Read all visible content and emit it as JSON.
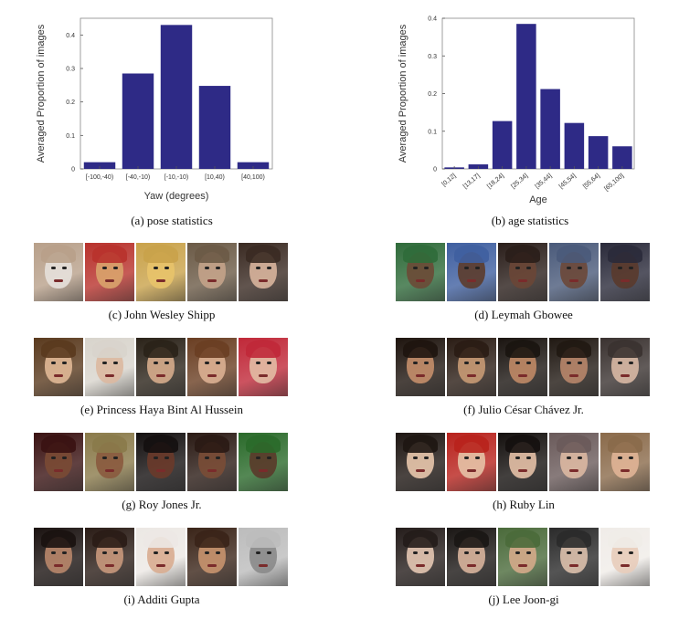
{
  "chart_data": [
    {
      "type": "bar",
      "categories": [
        "[-100,-40)",
        "[-40,-10)",
        "[-10,-10)",
        "[10,40)",
        "[40,100)"
      ],
      "values": [
        0.02,
        0.285,
        0.43,
        0.248,
        0.02
      ],
      "title": "",
      "xlabel": "Yaw (degrees)",
      "ylabel": "Averaged Proportion of images",
      "ylim": [
        0,
        0.45
      ],
      "yticks": [
        0,
        0.1,
        0.2,
        0.3,
        0.4
      ],
      "ytick_labels": [
        "0",
        "0.1",
        "0.2",
        "0.3",
        "0.4"
      ],
      "bar_color": "#2e2a86",
      "caption": "(a)  pose statistics"
    },
    {
      "type": "bar",
      "categories": [
        "[0,12]",
        "[13,17]",
        "[18,24]",
        "[25,34]",
        "[35,44]",
        "[45,54]",
        "[55,64]",
        "[65,100]"
      ],
      "values": [
        0.004,
        0.012,
        0.127,
        0.385,
        0.212,
        0.122,
        0.087,
        0.06
      ],
      "title": "",
      "xlabel": "Age",
      "ylabel": "Averaged Proportion of images",
      "ylim": [
        0,
        0.4
      ],
      "yticks": [
        0,
        0.1,
        0.2,
        0.3,
        0.4
      ],
      "ytick_labels": [
        "0",
        "0.1",
        "0.2",
        "0.3",
        "0.4"
      ],
      "bar_color": "#2e2a86",
      "caption": "(b)  age statistics"
    }
  ],
  "strips": [
    {
      "caption": "(c)  John Wesley Shipp",
      "faces": [
        [
          "#b8a08a",
          "#e6e0da"
        ],
        [
          "#b8322c",
          "#d9a36b"
        ],
        [
          "#c9a24a",
          "#e8c36a"
        ],
        [
          "#6b5a46",
          "#c4a389"
        ],
        [
          "#3a2a22",
          "#d8b49c"
        ]
      ]
    },
    {
      "caption": "(d)  Leymah Gbowee",
      "faces": [
        [
          "#2f6b3a",
          "#6b4a36"
        ],
        [
          "#3f5fa0",
          "#5c3c2c"
        ],
        [
          "#2a1e1a",
          "#6a4636"
        ],
        [
          "#4a5a7a",
          "#6b4838"
        ],
        [
          "#2a2a3a",
          "#5a3a2c"
        ]
      ]
    },
    {
      "caption": "(e)  Princess Haya Bint Al Hussein",
      "faces": [
        [
          "#5a3a1e",
          "#e0b896"
        ],
        [
          "#d8d4cc",
          "#dcb8a0"
        ],
        [
          "#2a2218",
          "#d6ac8c"
        ],
        [
          "#6a3e22",
          "#dcb092"
        ],
        [
          "#c02838",
          "#e2bca4"
        ]
      ]
    },
    {
      "caption": "(f)  Julio César Chávez Jr.",
      "faces": [
        [
          "#1e140e",
          "#c48e6a"
        ],
        [
          "#2a1c14",
          "#c89a74"
        ],
        [
          "#1a1410",
          "#c08a66"
        ],
        [
          "#201812",
          "#b8866a"
        ],
        [
          "#3a3230",
          "#d8b8a4"
        ]
      ]
    },
    {
      "caption": "(g)  Roy Jones Jr.",
      "faces": [
        [
          "#3a1212",
          "#7a4a34"
        ],
        [
          "#8a7a4a",
          "#8a5a3e"
        ],
        [
          "#141010",
          "#6a3a2a"
        ],
        [
          "#2a1a14",
          "#7a4c36"
        ],
        [
          "#2a6a2a",
          "#5a3a2a"
        ]
      ]
    },
    {
      "caption": "(h)  Ruby Lin",
      "faces": [
        [
          "#1e1612",
          "#e8c6ac"
        ],
        [
          "#b8221c",
          "#e6c2a6"
        ],
        [
          "#14100e",
          "#e4c0a6"
        ],
        [
          "#6a5a5a",
          "#dcb8a2"
        ],
        [
          "#8a6a4a",
          "#e0b496"
        ]
      ]
    },
    {
      "caption": "(i)  Additi Gupta",
      "faces": [
        [
          "#1a1210",
          "#b8866a"
        ],
        [
          "#2a1c16",
          "#c8987c"
        ],
        [
          "#ece8e4",
          "#d8ac90"
        ],
        [
          "#3a2418",
          "#c8946e"
        ],
        [
          "#bcbcbc",
          "#8a8a8a"
        ]
      ]
    },
    {
      "caption": "(j)  Lee Joon-gi",
      "faces": [
        [
          "#241c1a",
          "#e4c6b2"
        ],
        [
          "#1a1614",
          "#d8b49c"
        ],
        [
          "#4a6a3a",
          "#d4aa8a"
        ],
        [
          "#2a2a2a",
          "#dcc0ac"
        ],
        [
          "#f0ece8",
          "#e8ccba"
        ]
      ]
    }
  ]
}
